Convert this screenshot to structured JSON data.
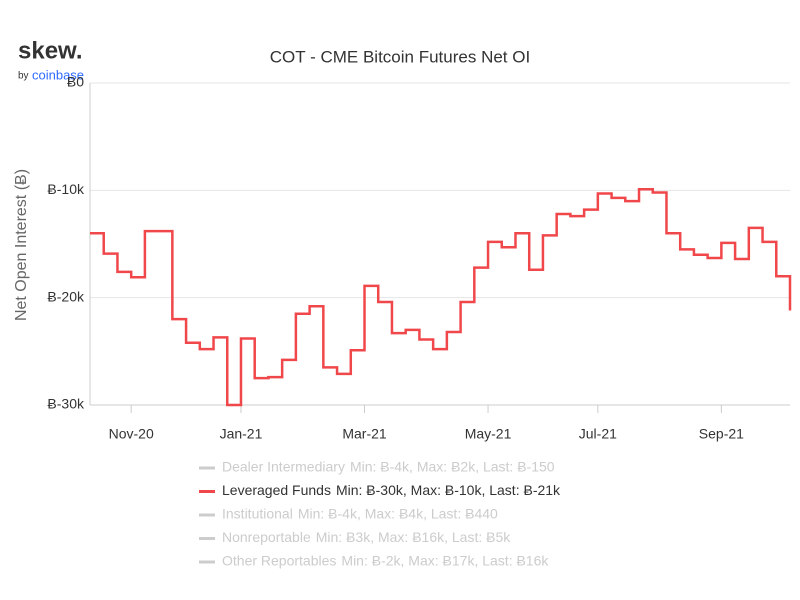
{
  "logo": {
    "name": "skew.",
    "by": "by",
    "brand": "coinbase"
  },
  "chart_data": {
    "type": "step",
    "title": "COT - CME Bitcoin Futures Net OI",
    "y_label": "Net Open Interest (Ƀ)",
    "categories": [
      null,
      null,
      null,
      "Nov-20",
      null,
      null,
      null,
      null,
      null,
      null,
      null,
      "Jan-21",
      null,
      null,
      null,
      null,
      null,
      null,
      null,
      null,
      "Mar-21",
      null,
      null,
      null,
      null,
      null,
      null,
      null,
      null,
      "May-21",
      null,
      null,
      null,
      null,
      null,
      null,
      null,
      "Jul-21",
      null,
      null,
      null,
      null,
      null,
      null,
      null,
      null,
      "Sep-21",
      null,
      null,
      null,
      null,
      null
    ],
    "ylim": [
      -30000,
      0
    ],
    "yticks": [
      {
        "value": 0,
        "label": "Ƀ0"
      },
      {
        "value": -10000,
        "label": "Ƀ-10k"
      },
      {
        "value": -20000,
        "label": "Ƀ-20k"
      },
      {
        "value": -30000,
        "label": "Ƀ-30k"
      }
    ],
    "grid": true,
    "series": [
      {
        "name": "Dealer Intermediary",
        "stats": "Min: Ƀ-4k, Max: Ƀ2k, Last: Ƀ-150",
        "color": "#cccccc",
        "visible": false
      },
      {
        "name": "Leveraged Funds",
        "stats": "Min: Ƀ-30k, Max: Ƀ-10k, Last: Ƀ-21k",
        "color": "#f0474b",
        "visible": true,
        "values": [
          -14000,
          -15900,
          -17600,
          -18100,
          -13800,
          -13800,
          -22000,
          -24200,
          -24800,
          -23700,
          -30000,
          -23800,
          -27500,
          -27400,
          -25800,
          -21500,
          -20800,
          -26500,
          -27100,
          -24900,
          -18900,
          -20400,
          -23300,
          -23000,
          -23900,
          -24800,
          -23200,
          -20400,
          -17200,
          -14800,
          -15300,
          -14000,
          -17400,
          -14200,
          -12200,
          -12400,
          -11800,
          -10300,
          -10700,
          -11000,
          -9900,
          -10200,
          -14000,
          -15500,
          -16000,
          -16300,
          -14900,
          -16400,
          -13500,
          -14800,
          -18000,
          -21200
        ]
      },
      {
        "name": "Institutional",
        "stats": "Min: Ƀ-4k, Max: Ƀ4k, Last: Ƀ440",
        "color": "#cccccc",
        "visible": false
      },
      {
        "name": "Nonreportable",
        "stats": "Min: Ƀ3k, Max: Ƀ16k, Last: Ƀ5k",
        "color": "#cccccc",
        "visible": false
      },
      {
        "name": "Other Reportables",
        "stats": "Min: Ƀ-2k, Max: Ƀ17k, Last: Ƀ16k",
        "color": "#cccccc",
        "visible": false
      }
    ]
  }
}
